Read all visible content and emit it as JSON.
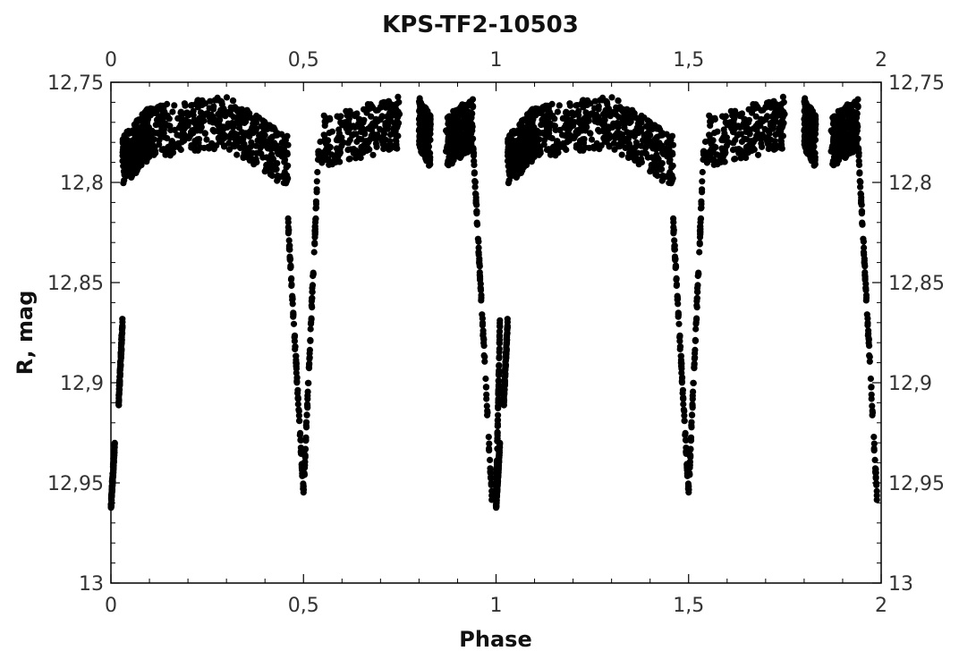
{
  "chart_data": {
    "type": "scatter",
    "title": "KPS-TF2-10503",
    "xlabel": "Phase",
    "ylabel": "R, mag",
    "xlim": [
      0,
      2
    ],
    "ylim": [
      12.75,
      13
    ],
    "y_inverted": true,
    "grid": false,
    "legend": "none",
    "marker_color": "#000000",
    "x_ticks": [
      {
        "value": 0,
        "label": "0"
      },
      {
        "value": 0.5,
        "label": "0,5"
      },
      {
        "value": 1,
        "label": "1"
      },
      {
        "value": 1.5,
        "label": "1,5"
      },
      {
        "value": 2,
        "label": "2"
      }
    ],
    "y_ticks": [
      {
        "value": 12.75,
        "label": "12,75"
      },
      {
        "value": 12.8,
        "label": "12,8"
      },
      {
        "value": 12.85,
        "label": "12,85"
      },
      {
        "value": 12.9,
        "label": "12,9"
      },
      {
        "value": 12.95,
        "label": "12,95"
      },
      {
        "value": 13,
        "label": "13"
      }
    ],
    "light_curve": {
      "period_in_phase": 1,
      "segments": [
        {
          "phase": [
            0.0,
            0.01
          ],
          "mag": [
            12.962,
            12.93
          ]
        },
        {
          "phase": [
            0.02,
            0.03
          ],
          "mag": [
            12.91,
            12.87
          ]
        },
        {
          "phase": [
            0.03,
            0.1
          ],
          "mag": [
            12.79,
            12.775
          ]
        },
        {
          "phase": [
            0.1,
            0.3
          ],
          "mag": [
            12.775,
            12.77
          ]
        },
        {
          "phase": [
            0.3,
            0.46
          ],
          "mag": [
            12.77,
            12.79
          ]
        },
        {
          "phase": [
            0.46,
            0.5
          ],
          "mag": [
            12.82,
            12.955
          ]
        },
        {
          "phase": [
            0.5,
            0.54
          ],
          "mag": [
            12.955,
            12.78
          ]
        },
        {
          "phase": [
            0.54,
            0.75
          ],
          "mag": [
            12.78,
            12.77
          ]
        },
        {
          "phase": [
            0.8,
            0.83
          ],
          "mag": [
            12.77,
            12.78
          ]
        },
        {
          "phase": [
            0.87,
            0.94
          ],
          "mag": [
            12.78,
            12.77
          ]
        },
        {
          "phase": [
            0.94,
            0.99
          ],
          "mag": [
            12.78,
            12.96
          ]
        },
        {
          "phase": [
            1.0,
            1.01
          ],
          "mag": [
            12.96,
            12.87
          ]
        }
      ],
      "out_of_eclipse_mag": 12.78,
      "primary_min": {
        "phase": 0.5,
        "mag": 12.955
      },
      "secondary_min": {
        "phase": 0.98,
        "mag": 12.962
      }
    }
  }
}
